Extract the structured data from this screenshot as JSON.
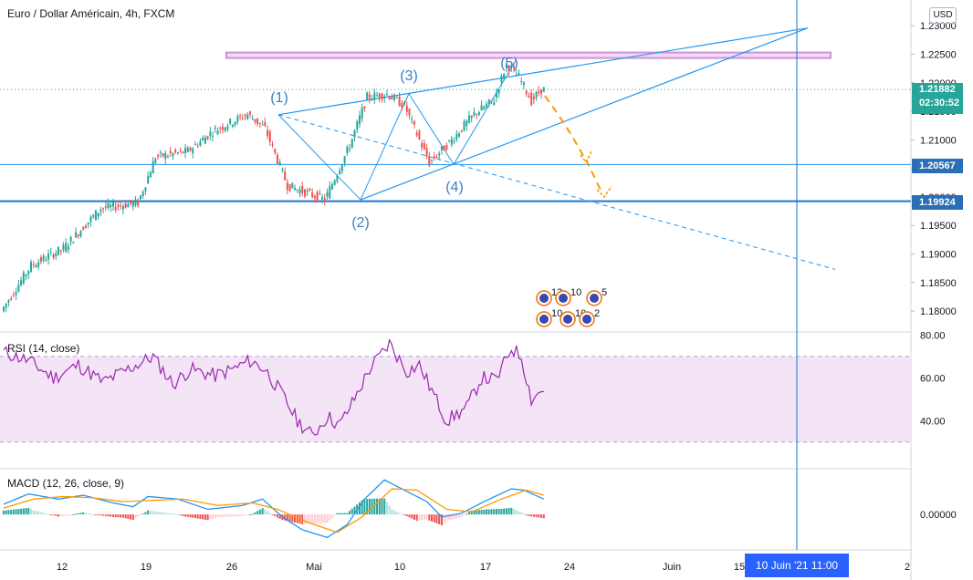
{
  "header": {
    "title": "Euro / Dollar Américain, 4h, FXCM"
  },
  "currency_button": "USD",
  "price_labels": {
    "current": "1.21882",
    "countdown": "02:30:52",
    "level_1": "1.20567",
    "level_2": "1.19924"
  },
  "time_marker": "10 Juin '21   11:00",
  "rsi_title": "RSI (14, close)",
  "macd_title": "MACD (12, 26, close, 9)",
  "wave_labels": [
    "(1)",
    "(2)",
    "(3)",
    "(4)",
    "(5)"
  ],
  "event_badges": [
    "13",
    "10",
    "5",
    "10",
    "10",
    "2"
  ],
  "colors": {
    "up": "#26a69a",
    "down": "#ef5350",
    "trendline": "#2196f3",
    "resistance_zone": "#ce93d8",
    "projection": "#ff9800",
    "rsi_line": "#9c27b0",
    "rsi_band": "#f3e5f5",
    "macd_line": "#2196f3",
    "signal_line": "#ff9800"
  },
  "chart_data": [
    {
      "type": "candlestick",
      "title": "Euro / Dollar Américain, 4h, FXCM",
      "price_axis_ticks": [
        "1.23000",
        "1.22500",
        "1.22000",
        "1.21500",
        "1.21000",
        "1.20500",
        "1.20000",
        "1.19500",
        "1.19000",
        "1.18500",
        "1.18000"
      ],
      "ylim": [
        1.1765,
        1.2345
      ],
      "x_axis_ticks": [
        "12",
        "19",
        "26",
        "Mai",
        "10",
        "17",
        "24",
        "Juin",
        "15",
        "2"
      ],
      "current_price": 1.21882,
      "horizontal_levels": [
        1.20567,
        1.19924
      ],
      "resistance_zone": [
        1.2246,
        1.2253
      ],
      "wave_points": [
        {
          "label": "(1)",
          "price": 1.2144
        },
        {
          "label": "(2)",
          "price": 1.1995
        },
        {
          "label": "(3)",
          "price": 1.2181
        },
        {
          "label": "(4)",
          "price": 1.2057
        },
        {
          "label": "(5)",
          "price": 1.2239
        }
      ],
      "projection_targets": [
        1.2063,
        1.1999
      ],
      "anchor_points": [
        {
          "bar": 0,
          "price": 1.18
        },
        {
          "bar": 12,
          "price": 1.188
        },
        {
          "bar": 25,
          "price": 1.191
        },
        {
          "bar": 40,
          "price": 1.198
        },
        {
          "bar": 55,
          "price": 1.199
        },
        {
          "bar": 62,
          "price": 1.207
        },
        {
          "bar": 75,
          "price": 1.208
        },
        {
          "bar": 85,
          "price": 1.2115
        },
        {
          "bar": 99,
          "price": 1.2145
        },
        {
          "bar": 106,
          "price": 1.212
        },
        {
          "bar": 115,
          "price": 1.202
        },
        {
          "bar": 130,
          "price": 1.1995
        },
        {
          "bar": 140,
          "price": 1.209
        },
        {
          "bar": 147,
          "price": 1.2175
        },
        {
          "bar": 155,
          "price": 1.218
        },
        {
          "bar": 162,
          "price": 1.216
        },
        {
          "bar": 172,
          "price": 1.206
        },
        {
          "bar": 180,
          "price": 1.2095
        },
        {
          "bar": 190,
          "price": 1.2145
        },
        {
          "bar": 198,
          "price": 1.217
        },
        {
          "bar": 203,
          "price": 1.2232
        },
        {
          "bar": 208,
          "price": 1.221
        },
        {
          "bar": 213,
          "price": 1.2168
        },
        {
          "bar": 217,
          "price": 1.2188
        }
      ]
    },
    {
      "type": "line",
      "title": "RSI (14, close)",
      "ylim": [
        18,
        81
      ],
      "y_axis_ticks": [
        "80.00",
        "60.00",
        "40.00"
      ],
      "band": [
        30,
        70
      ],
      "anchor_points": [
        {
          "bar": 0,
          "value": 72
        },
        {
          "bar": 10,
          "value": 68
        },
        {
          "bar": 20,
          "value": 60
        },
        {
          "bar": 30,
          "value": 66
        },
        {
          "bar": 40,
          "value": 58
        },
        {
          "bar": 50,
          "value": 64
        },
        {
          "bar": 60,
          "value": 70
        },
        {
          "bar": 68,
          "value": 57
        },
        {
          "bar": 75,
          "value": 64
        },
        {
          "bar": 85,
          "value": 61
        },
        {
          "bar": 92,
          "value": 64
        },
        {
          "bar": 99,
          "value": 68
        },
        {
          "bar": 105,
          "value": 64
        },
        {
          "bar": 112,
          "value": 52
        },
        {
          "bar": 118,
          "value": 40
        },
        {
          "bar": 124,
          "value": 33
        },
        {
          "bar": 130,
          "value": 42
        },
        {
          "bar": 135,
          "value": 38
        },
        {
          "bar": 140,
          "value": 48
        },
        {
          "bar": 147,
          "value": 64
        },
        {
          "bar": 155,
          "value": 76
        },
        {
          "bar": 162,
          "value": 63
        },
        {
          "bar": 167,
          "value": 66
        },
        {
          "bar": 172,
          "value": 54
        },
        {
          "bar": 178,
          "value": 40
        },
        {
          "bar": 186,
          "value": 46
        },
        {
          "bar": 192,
          "value": 60
        },
        {
          "bar": 198,
          "value": 59
        },
        {
          "bar": 204,
          "value": 74
        },
        {
          "bar": 208,
          "value": 70
        },
        {
          "bar": 212,
          "value": 50
        },
        {
          "bar": 217,
          "value": 55
        }
      ]
    },
    {
      "type": "line",
      "title": "MACD (12, 26, close, 9)",
      "ylim": [
        -0.0027,
        0.0035
      ],
      "y_axis_ticks": [
        "0.00000"
      ],
      "series": [
        {
          "name": "MACD",
          "anchor_points": [
            {
              "bar": 0,
              "value": 0.0008
            },
            {
              "bar": 10,
              "value": 0.0016
            },
            {
              "bar": 22,
              "value": 0.0012
            },
            {
              "bar": 32,
              "value": 0.0015
            },
            {
              "bar": 44,
              "value": 0.0009
            },
            {
              "bar": 52,
              "value": 0.0006
            },
            {
              "bar": 58,
              "value": 0.0014
            },
            {
              "bar": 70,
              "value": 0.0012
            },
            {
              "bar": 82,
              "value": 0.0004
            },
            {
              "bar": 96,
              "value": 0.0007
            },
            {
              "bar": 104,
              "value": 0.0012
            },
            {
              "bar": 112,
              "value": -0.0002
            },
            {
              "bar": 120,
              "value": -0.0012
            },
            {
              "bar": 130,
              "value": -0.0018
            },
            {
              "bar": 138,
              "value": -0.0008
            },
            {
              "bar": 145,
              "value": 0.0012
            },
            {
              "bar": 153,
              "value": 0.0027
            },
            {
              "bar": 162,
              "value": 0.0018
            },
            {
              "bar": 170,
              "value": 0.001
            },
            {
              "bar": 176,
              "value": -0.0002
            },
            {
              "bar": 184,
              "value": 0.0001
            },
            {
              "bar": 194,
              "value": 0.0011
            },
            {
              "bar": 204,
              "value": 0.002
            },
            {
              "bar": 209,
              "value": 0.0019
            },
            {
              "bar": 217,
              "value": 0.0012
            }
          ]
        },
        {
          "name": "Signal",
          "anchor_points": [
            {
              "bar": 0,
              "value": 0.0005
            },
            {
              "bar": 12,
              "value": 0.0012
            },
            {
              "bar": 24,
              "value": 0.0014
            },
            {
              "bar": 36,
              "value": 0.0013
            },
            {
              "bar": 48,
              "value": 0.001
            },
            {
              "bar": 60,
              "value": 0.0011
            },
            {
              "bar": 72,
              "value": 0.0012
            },
            {
              "bar": 86,
              "value": 0.0007
            },
            {
              "bar": 100,
              "value": 0.0009
            },
            {
              "bar": 110,
              "value": 0.0004
            },
            {
              "bar": 122,
              "value": -0.0006
            },
            {
              "bar": 134,
              "value": -0.0014
            },
            {
              "bar": 144,
              "value": -0.0002
            },
            {
              "bar": 156,
              "value": 0.002
            },
            {
              "bar": 166,
              "value": 0.0019
            },
            {
              "bar": 178,
              "value": 0.0004
            },
            {
              "bar": 188,
              "value": 0.0002
            },
            {
              "bar": 200,
              "value": 0.0012
            },
            {
              "bar": 210,
              "value": 0.0019
            },
            {
              "bar": 217,
              "value": 0.0015
            }
          ]
        }
      ]
    }
  ]
}
